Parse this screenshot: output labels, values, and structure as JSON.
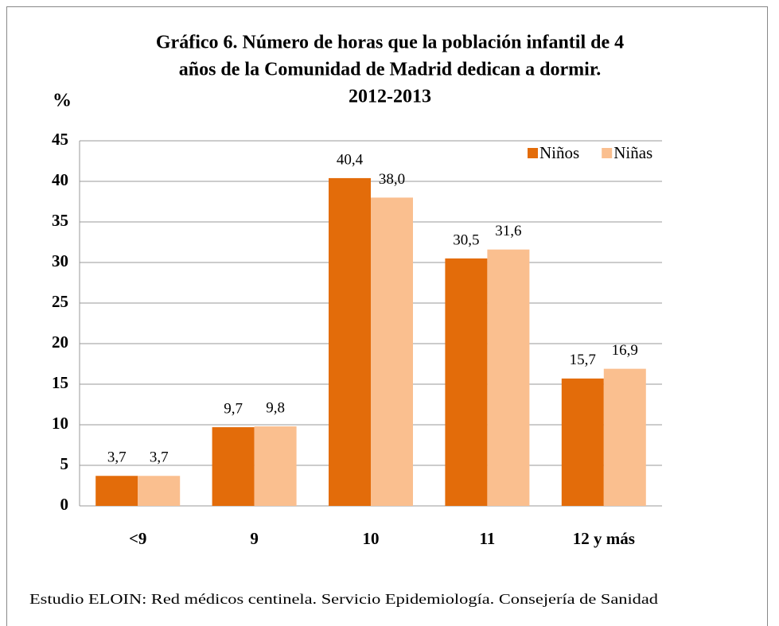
{
  "chart_data": {
    "type": "bar",
    "title": [
      "Gráfico 6.  Número de horas que la población infantil de 4",
      "años de la Comunidad de Madrid dedican a dormir.",
      "2012-2013"
    ],
    "y_label": "%",
    "categories": [
      "<9",
      "9",
      "10",
      "11",
      "12 y más"
    ],
    "series": [
      {
        "name": "Niños",
        "color": "#E36C0A",
        "values": [
          3.7,
          9.7,
          40.4,
          30.5,
          15.7
        ],
        "value_labels": [
          "3,7",
          "9,7",
          "40,4",
          "30,5",
          "15,7"
        ]
      },
      {
        "name": "Niñas",
        "color": "#FABF8F",
        "values": [
          3.7,
          9.8,
          38.0,
          31.6,
          16.9
        ],
        "value_labels": [
          "3,7",
          "9,8",
          "38,0",
          "31,6",
          "16,9"
        ]
      }
    ],
    "ylim": [
      0,
      45
    ],
    "yticks": [
      0,
      5,
      10,
      15,
      20,
      25,
      30,
      35,
      40,
      45
    ],
    "grid": true,
    "legend": "top-right",
    "source": "Estudio ELOIN: Red médicos centinela. Servicio Epidemiología. Consejería de Sanidad"
  }
}
